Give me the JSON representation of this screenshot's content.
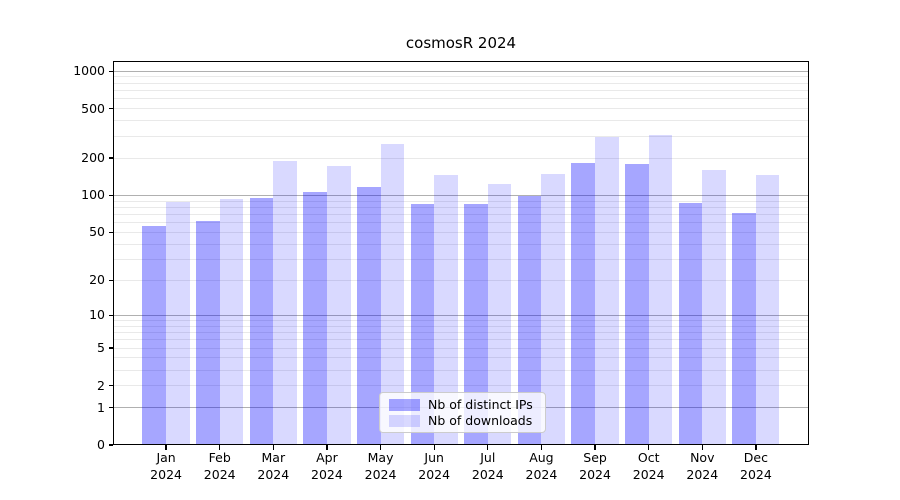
{
  "title": "cosmosR 2024",
  "legend": {
    "items": [
      {
        "label": "Nb of distinct IPs",
        "color": "rgba(0,0,255,0.35)"
      },
      {
        "label": "Nb of downloads",
        "color": "rgba(0,0,255,0.15)"
      }
    ]
  },
  "chart_data": {
    "type": "bar",
    "title": "cosmosR 2024",
    "categories": [
      "Jan 2024",
      "Feb 2024",
      "Mar 2024",
      "Apr 2024",
      "May 2024",
      "Jun 2024",
      "Jul 2024",
      "Aug 2024",
      "Sep 2024",
      "Oct 2024",
      "Nov 2024",
      "Dec 2024"
    ],
    "x_tick_months": [
      "Jan",
      "Feb",
      "Mar",
      "Apr",
      "May",
      "Jun",
      "Jul",
      "Aug",
      "Sep",
      "Oct",
      "Nov",
      "Dec"
    ],
    "x_tick_year": "2024",
    "series": [
      {
        "name": "Nb of distinct IPs",
        "color": "rgba(0,0,255,0.35)",
        "values": [
          56,
          62,
          95,
          107,
          117,
          85,
          85,
          98,
          184,
          180,
          87,
          72
        ]
      },
      {
        "name": "Nb of downloads",
        "color": "rgba(0,0,255,0.15)",
        "values": [
          88,
          94,
          190,
          172,
          258,
          147,
          124,
          150,
          296,
          309,
          159,
          147
        ]
      }
    ],
    "yscale": "log1p",
    "ylim": [
      0,
      1210
    ],
    "yticks": [
      0,
      1,
      2,
      5,
      10,
      20,
      50,
      100,
      200,
      500,
      1000
    ],
    "grid": {
      "major": [
        1,
        10,
        100,
        1000
      ],
      "minor": [
        2,
        3,
        4,
        5,
        6,
        7,
        8,
        9,
        20,
        30,
        40,
        50,
        60,
        70,
        80,
        90,
        200,
        300,
        400,
        500,
        600,
        700,
        800,
        900
      ]
    },
    "legend_position": "lower center inside plot",
    "grid_on": true
  },
  "colors": {
    "background": "#ffffff",
    "grid_major": "#b0b0b0",
    "grid_minor": "#e9e9e9",
    "spine": "#000000",
    "legend_border": "#cccccc"
  }
}
